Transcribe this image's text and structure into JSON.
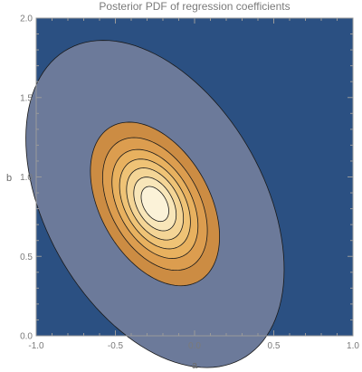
{
  "chart_data": {
    "type": "contour",
    "title": "Posterior PDF of regression coefficients",
    "xlabel": "a",
    "ylabel": "b",
    "xlim": [
      -1.0,
      1.0
    ],
    "ylim": [
      0.0,
      2.0
    ],
    "x_ticks": [
      -1.0,
      -0.5,
      0.0,
      0.5,
      1.0
    ],
    "x_tick_labels": [
      "-1.0",
      "-0.5",
      "0.0",
      "0.5",
      "1.0"
    ],
    "y_ticks": [
      0.0,
      0.5,
      1.0,
      1.5,
      2.0
    ],
    "y_tick_labels": [
      "0.0",
      "0.5",
      "1.0",
      "1.5",
      "2.0"
    ],
    "grid": false,
    "distribution": {
      "mean": [
        -0.25,
        0.83
      ],
      "sd": [
        0.19,
        0.24
      ],
      "correlation": -0.4
    },
    "contour_levels": [
      0.0001,
      0.1,
      0.22,
      0.36,
      0.5,
      0.64,
      0.78,
      0.9
    ],
    "contour_fills": [
      "#2b5082",
      "#6c7a9a",
      "#cc8c43",
      "#dc9d4f",
      "#e8b15f",
      "#efc376",
      "#f4d596",
      "#f8e6b9",
      "#fbf2d8"
    ]
  }
}
